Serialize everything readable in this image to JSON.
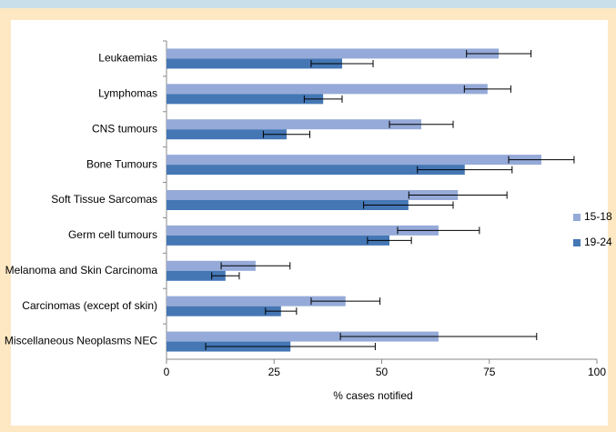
{
  "chart_data": {
    "type": "hbar",
    "x_label": "% cases notified",
    "categories": [
      "Leukaemias",
      "Lymphomas",
      "CNS tumours",
      "Bone Tumours",
      "Soft Tissue Sarcomas",
      "Germ cell tumours",
      "Melanoma and Skin Carcinoma",
      "Carcinomas (except of skin)",
      "Miscellaneous Neoplasms NEC"
    ],
    "series": [
      {
        "name": "15-18",
        "color": "#95aad8",
        "values": [
          77.2,
          74.6,
          59.2,
          87.1,
          67.7,
          63.2,
          20.7,
          41.6,
          63.2
        ],
        "errors": [
          7.5,
          5.4,
          7.4,
          7.6,
          11.4,
          9.5,
          8,
          8,
          22.8
        ]
      },
      {
        "name": "19-24",
        "color": "#4577b5",
        "values": [
          40.8,
          36.4,
          27.9,
          69.3,
          56.2,
          51.8,
          13.7,
          26.6,
          28.8
        ],
        "errors": [
          7.2,
          4.4,
          5.4,
          11,
          10.4,
          5.1,
          3.2,
          3.6,
          19.7
        ]
      }
    ],
    "xlim": [
      0,
      100
    ],
    "xticks": [
      0,
      25,
      50,
      75,
      100
    ],
    "grid": false,
    "legend": "right"
  }
}
